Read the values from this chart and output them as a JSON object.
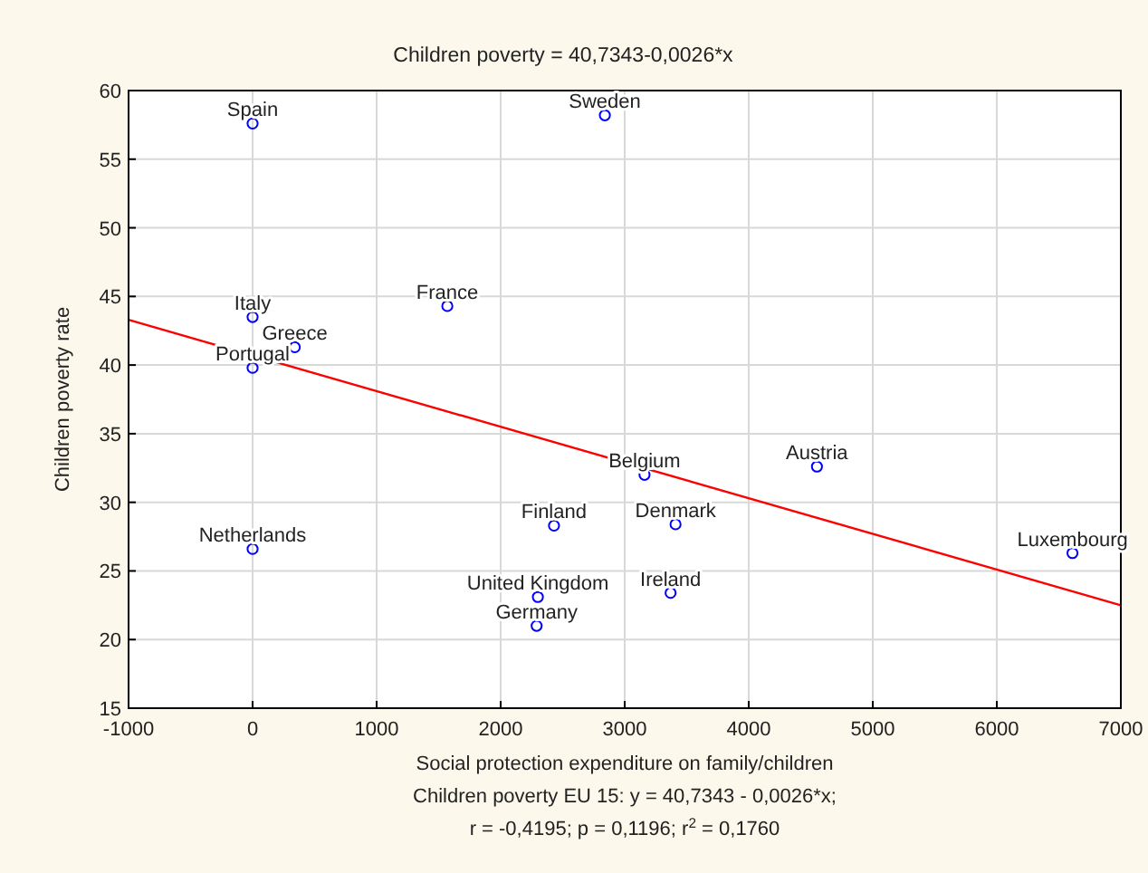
{
  "chart_data": {
    "type": "scatter",
    "title": "Children poverty = 40,7343-0,0026*x",
    "xlabel": "Social protection expenditure on family/children",
    "ylabel": "Children poverty rate",
    "series": [
      {
        "color": "#0000ff",
        "marker": "circle",
        "x": [
          0,
          2840,
          0,
          1570,
          340,
          0,
          0,
          2430,
          2300,
          2290,
          3160,
          3410,
          3370,
          4550,
          6610
        ],
        "values": [
          57.6,
          58.2,
          43.5,
          44.3,
          41.3,
          39.8,
          26.6,
          28.3,
          23.1,
          21.0,
          32.0,
          28.4,
          23.4,
          32.6,
          26.3
        ]
      },
      {
        "type": "line",
        "color": "#ff0000",
        "marker": "none",
        "x": [
          -1000,
          7000
        ],
        "values": [
          43.3,
          22.5
        ]
      }
    ],
    "xlim": [
      -1000,
      7000
    ],
    "xticks": [
      -1000,
      0,
      1000,
      2000,
      3000,
      4000,
      5000,
      6000,
      7000
    ],
    "ylim": [
      15,
      60
    ],
    "yticks": [
      15,
      20,
      25,
      30,
      35,
      40,
      45,
      50,
      55,
      60
    ],
    "grid": true,
    "annotations": [
      {
        "text": "Spain",
        "x": 0,
        "y": 57.6
      },
      {
        "text": "Sweden",
        "x": 2840,
        "y": 58.2
      },
      {
        "text": "Italy",
        "x": 0,
        "y": 43.5
      },
      {
        "text": "France",
        "x": 1570,
        "y": 44.3
      },
      {
        "text": "Greece",
        "x": 340,
        "y": 41.3
      },
      {
        "text": "Portugal",
        "x": 0,
        "y": 39.8
      },
      {
        "text": "Netherlands",
        "x": 0,
        "y": 26.6
      },
      {
        "text": "Finland",
        "x": 2430,
        "y": 28.3
      },
      {
        "text": "United Kingdom",
        "x": 2300,
        "y": 23.1
      },
      {
        "text": "Germany",
        "x": 2290,
        "y": 21.0
      },
      {
        "text": "Belgium",
        "x": 3160,
        "y": 32.0
      },
      {
        "text": "Denmark",
        "x": 3410,
        "y": 28.4
      },
      {
        "text": "Ireland",
        "x": 3370,
        "y": 23.4
      },
      {
        "text": "Austria",
        "x": 4550,
        "y": 32.6
      },
      {
        "text": "Luxembourg",
        "x": 6610,
        "y": 26.3
      },
      "Children poverty EU 15: y = 40,7343 - 0,0026*x;",
      "r = -0,4195; p = 0,1196; r$^{2}$ = 0,1760"
    ]
  }
}
